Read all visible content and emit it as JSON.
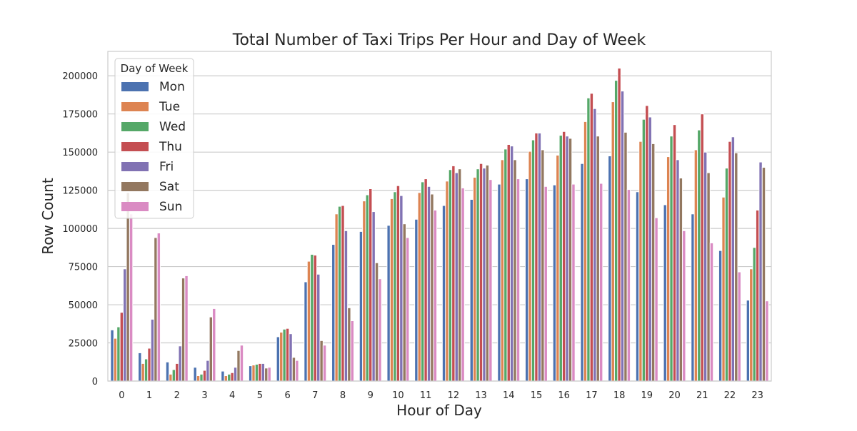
{
  "chart_data": {
    "type": "bar",
    "title": "Total Number of Taxi Trips Per Hour and Day of Week",
    "xlabel": "Hour of Day",
    "ylabel": "Row Count",
    "ylim": [
      0,
      216000
    ],
    "yticks": [
      0,
      25000,
      50000,
      75000,
      100000,
      125000,
      150000,
      175000,
      200000
    ],
    "grid": "horizontal",
    "legend": {
      "title": "Day of Week",
      "placement": "top-left"
    },
    "categories": [
      "0",
      "1",
      "2",
      "3",
      "4",
      "5",
      "6",
      "7",
      "8",
      "9",
      "10",
      "11",
      "12",
      "13",
      "14",
      "15",
      "16",
      "17",
      "18",
      "19",
      "20",
      "21",
      "22",
      "23"
    ],
    "series": [
      {
        "name": "Mon",
        "color": "#4c72b0",
        "values": [
          33500,
          18500,
          12500,
          9000,
          6500,
          10000,
          29000,
          65000,
          89500,
          98000,
          102000,
          106000,
          115000,
          119000,
          129000,
          132500,
          128500,
          142500,
          147500,
          124000,
          115500,
          109500,
          85500,
          53000
        ]
      },
      {
        "name": "Tue",
        "color": "#dd8452",
        "values": [
          28000,
          11500,
          4500,
          3500,
          3500,
          10500,
          32000,
          78500,
          109500,
          118000,
          119500,
          123500,
          131000,
          133500,
          145000,
          150500,
          148000,
          170000,
          183000,
          157000,
          147000,
          151500,
          120500,
          73500
        ]
      },
      {
        "name": "Wed",
        "color": "#55a868",
        "values": [
          35500,
          14500,
          7500,
          4500,
          4500,
          11000,
          34000,
          83000,
          114500,
          122000,
          124000,
          130500,
          138500,
          139000,
          152000,
          158000,
          161000,
          185500,
          197000,
          171500,
          160500,
          164500,
          139500,
          87500
        ]
      },
      {
        "name": "Thu",
        "color": "#c44e52",
        "values": [
          45000,
          21500,
          11500,
          7000,
          5500,
          11500,
          34500,
          82500,
          115000,
          126000,
          128000,
          132500,
          141000,
          142500,
          155000,
          162500,
          163500,
          188500,
          205000,
          180500,
          168000,
          175000,
          157000,
          112000
        ]
      },
      {
        "name": "Fri",
        "color": "#8172b3",
        "values": [
          73500,
          40500,
          23000,
          13500,
          9000,
          11500,
          31000,
          70000,
          98500,
          111000,
          121500,
          127500,
          136500,
          139500,
          154000,
          162500,
          160500,
          178500,
          190000,
          173000,
          145000,
          150000,
          160000,
          143500
        ]
      },
      {
        "name": "Sat",
        "color": "#937860",
        "values": [
          123500,
          94000,
          67500,
          42000,
          20000,
          8500,
          15500,
          26500,
          48000,
          77500,
          103000,
          122500,
          139000,
          141500,
          145000,
          151500,
          159000,
          160500,
          163000,
          155500,
          133000,
          136500,
          149500,
          140000
        ]
      },
      {
        "name": "Sun",
        "color": "#da8bc3",
        "values": [
          109500,
          97000,
          69000,
          47500,
          23500,
          9000,
          13500,
          23500,
          39500,
          67000,
          94000,
          112000,
          126500,
          132000,
          132500,
          127500,
          129000,
          129500,
          125500,
          107000,
          98500,
          90500,
          71500,
          52500
        ]
      }
    ]
  }
}
